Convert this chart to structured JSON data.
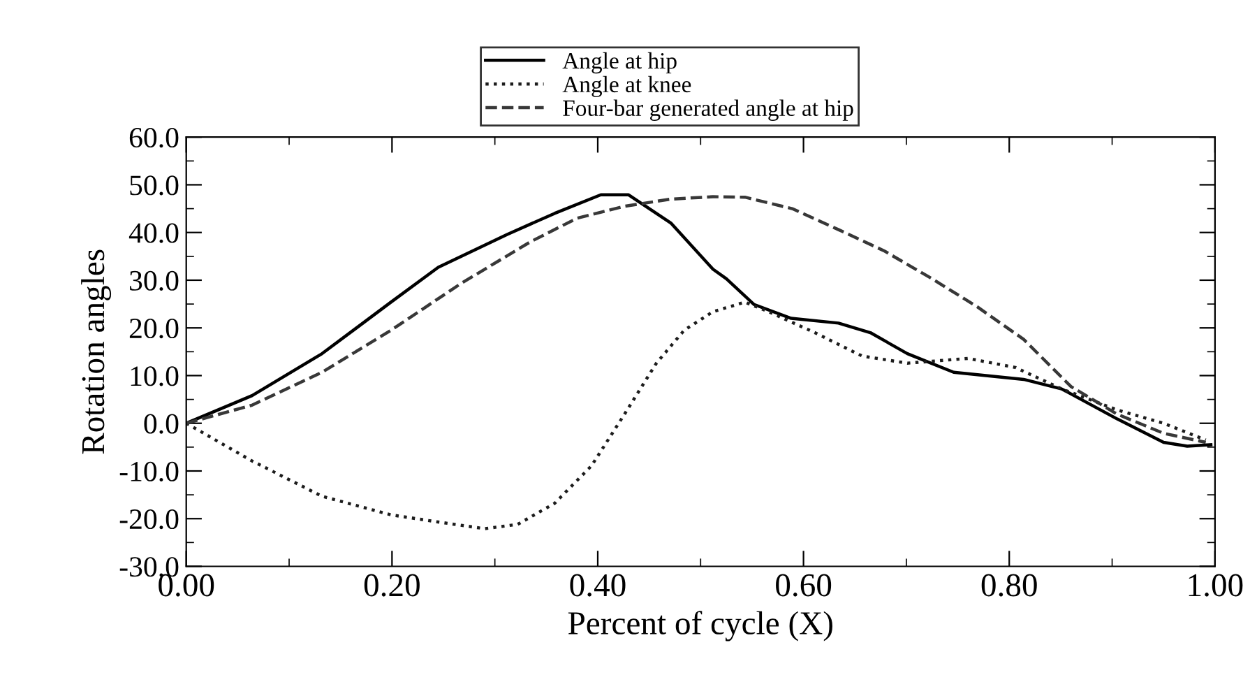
{
  "chart_data": {
    "type": "line",
    "xlabel": "Percent of cycle (X)",
    "ylabel": "Rotation angles",
    "xlim": [
      0,
      1
    ],
    "xticks": [
      {
        "value": 0,
        "label": "0.00"
      },
      {
        "value": 0.2,
        "label": "0.20"
      },
      {
        "value": 0.4,
        "label": "0.40"
      },
      {
        "value": 0.6,
        "label": "0.60"
      },
      {
        "value": 0.8,
        "label": "0.80"
      },
      {
        "value": 1,
        "label": "1.00"
      }
    ],
    "ylim": [
      -30,
      60
    ],
    "yticks": [
      {
        "value": -30,
        "label": "-30.0"
      },
      {
        "value": -20,
        "label": "-20.0"
      },
      {
        "value": -10,
        "label": "-10.0"
      },
      {
        "value": 0,
        "label": "0.0"
      },
      {
        "value": 10,
        "label": "10.0"
      },
      {
        "value": 20,
        "label": "20.0"
      },
      {
        "value": 30,
        "label": "30.0"
      },
      {
        "value": 40,
        "label": "40.0"
      },
      {
        "value": 50,
        "label": "50.0"
      },
      {
        "value": 60,
        "label": "60.0"
      }
    ],
    "grid": false,
    "legend": "top",
    "marker": "none",
    "series": [
      {
        "name": "Angle at hip",
        "color": "#000000",
        "line_style": "solid",
        "x": [
          0,
          0.064,
          0.132,
          0.199,
          0.245,
          0.312,
          0.358,
          0.403,
          0.43,
          0.471,
          0.512,
          0.525,
          0.552,
          0.588,
          0.634,
          0.665,
          0.701,
          0.746,
          0.814,
          0.851,
          0.905,
          0.95,
          0.973,
          0.996
        ],
        "values": [
          0,
          5.8,
          14.6,
          25.4,
          32.7,
          39.6,
          44.0,
          47.9,
          47.9,
          42.0,
          32.3,
          30.3,
          24.9,
          22.0,
          21.0,
          19.0,
          14.6,
          10.7,
          9.2,
          7.2,
          0.9,
          -4.0,
          -4.8,
          -4.5
        ]
      },
      {
        "name": "Angle at knee",
        "color": "#1c1c1c",
        "line_style": "dotted",
        "x": [
          0,
          0.064,
          0.132,
          0.199,
          0.245,
          0.29,
          0.322,
          0.358,
          0.394,
          0.426,
          0.457,
          0.484,
          0.512,
          0.543,
          0.566,
          0.611,
          0.657,
          0.701,
          0.76,
          0.806,
          0.851,
          0.905,
          0.95,
          0.991
        ],
        "values": [
          0,
          -7.9,
          -15.3,
          -19.2,
          -20.7,
          -22.1,
          -21.2,
          -16.8,
          -8.9,
          1.9,
          12.6,
          19.5,
          23.4,
          25.4,
          23.4,
          19.0,
          14.1,
          12.6,
          13.6,
          11.7,
          7.2,
          2.8,
          0,
          -3.5
        ]
      },
      {
        "name": "Four-bar generated angle at hip",
        "color": "#383838",
        "line_style": "dashed",
        "x": [
          0,
          0.064,
          0.132,
          0.199,
          0.267,
          0.335,
          0.38,
          0.426,
          0.471,
          0.512,
          0.543,
          0.589,
          0.634,
          0.678,
          0.725,
          0.769,
          0.814,
          0.86,
          0.905,
          0.95,
          0.991
        ],
        "values": [
          0,
          3.8,
          10.7,
          19.5,
          29.3,
          38.1,
          43.0,
          45.5,
          47.0,
          47.5,
          47.4,
          45.0,
          40.6,
          36.2,
          30.3,
          24.4,
          17.6,
          7.7,
          1.9,
          -2.1,
          -4.0
        ]
      }
    ]
  }
}
